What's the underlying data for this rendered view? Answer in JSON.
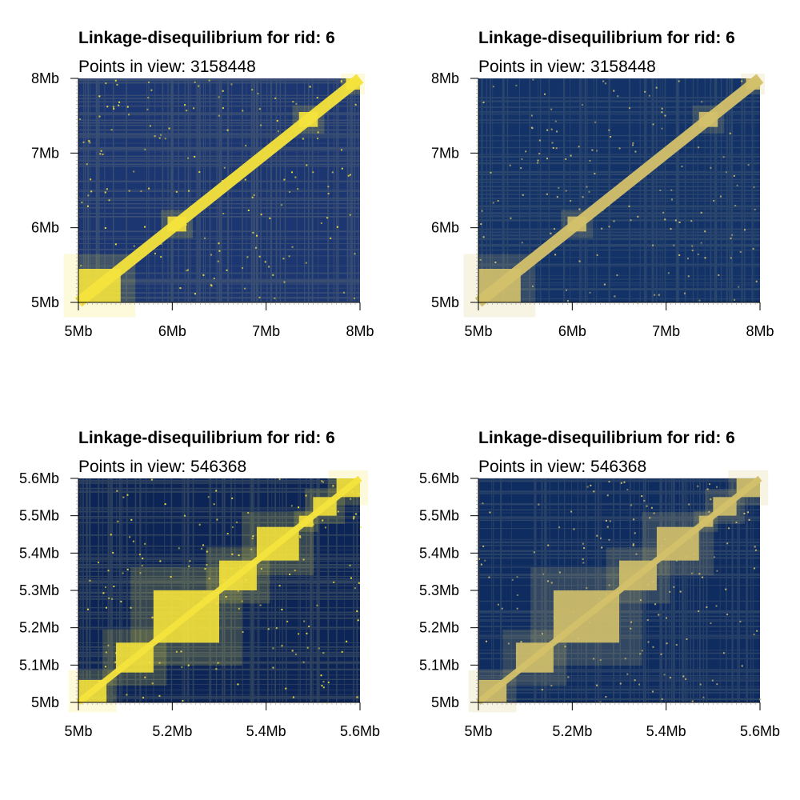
{
  "chart_data": [
    {
      "type": "heatmap",
      "title": "Linkage-disequilibrium for rid: 6",
      "subtitle": "Points in view: 3158448",
      "points_in_view": 3158448,
      "xlim_mb": [
        5,
        8
      ],
      "ylim_mb": [
        5,
        8
      ],
      "x_ticks": [
        5,
        6,
        7,
        8
      ],
      "x_tick_labels": [
        "5Mb",
        "6Mb",
        "7Mb",
        "8Mb"
      ],
      "y_ticks": [
        5,
        6,
        7,
        8
      ],
      "y_tick_labels": [
        "5Mb",
        "6Mb",
        "7Mb",
        "8Mb"
      ],
      "blocks_mb": [
        [
          5.0,
          5.45
        ],
        [
          5.95,
          6.15
        ],
        [
          7.35,
          7.55
        ],
        [
          7.85,
          8.0
        ]
      ],
      "colors": {
        "background": "#1c3672",
        "high": "#f6e33c",
        "mid": "#6f7b72"
      },
      "grid": false,
      "legend": "none"
    },
    {
      "type": "heatmap",
      "title": "Linkage-disequilibrium for rid: 6",
      "subtitle": "Points in view: 3158448",
      "points_in_view": 3158448,
      "xlim_mb": [
        5,
        8
      ],
      "ylim_mb": [
        5,
        8
      ],
      "x_ticks": [
        5,
        6,
        7,
        8
      ],
      "x_tick_labels": [
        "5Mb",
        "6Mb",
        "7Mb",
        "8Mb"
      ],
      "y_ticks": [
        5,
        6,
        7,
        8
      ],
      "y_tick_labels": [
        "5Mb",
        "6Mb",
        "7Mb",
        "8Mb"
      ],
      "blocks_mb": [
        [
          5.0,
          5.45
        ],
        [
          5.95,
          6.15
        ],
        [
          7.35,
          7.55
        ],
        [
          7.85,
          8.0
        ]
      ],
      "colors": {
        "background": "#123268",
        "high": "#d4c16b",
        "mid": "#5b6b78"
      },
      "grid": false,
      "legend": "none"
    },
    {
      "type": "heatmap",
      "title": "Linkage-disequilibrium for rid: 6",
      "subtitle": "Points in view: 546368",
      "points_in_view": 546368,
      "xlim_mb": [
        5,
        5.6
      ],
      "ylim_mb": [
        5,
        5.6
      ],
      "x_ticks": [
        5,
        5.2,
        5.4,
        5.6
      ],
      "x_tick_labels": [
        "5Mb",
        "5.2Mb",
        "5.4Mb",
        "5.6Mb"
      ],
      "y_ticks": [
        5,
        5.1,
        5.2,
        5.3,
        5.4,
        5.5,
        5.6
      ],
      "y_tick_labels": [
        "5Mb",
        "5.1Mb",
        "5.2Mb",
        "5.3Mb",
        "5.4Mb",
        "5.5Mb",
        "5.6Mb"
      ],
      "blocks_mb": [
        [
          5.0,
          5.06
        ],
        [
          5.08,
          5.16
        ],
        [
          5.16,
          5.3
        ],
        [
          5.3,
          5.38
        ],
        [
          5.38,
          5.47
        ],
        [
          5.47,
          5.5
        ],
        [
          5.5,
          5.55
        ],
        [
          5.55,
          5.6
        ]
      ],
      "colors": {
        "background": "#0d2556",
        "high": "#f6e33c",
        "mid": "#6f7b72"
      },
      "grid": false,
      "legend": "none"
    },
    {
      "type": "heatmap",
      "title": "Linkage-disequilibrium for rid: 6",
      "subtitle": "Points in view: 546368",
      "points_in_view": 546368,
      "xlim_mb": [
        5,
        5.6
      ],
      "ylim_mb": [
        5,
        5.6
      ],
      "x_ticks": [
        5,
        5.2,
        5.4,
        5.6
      ],
      "x_tick_labels": [
        "5Mb",
        "5.2Mb",
        "5.4Mb",
        "5.6Mb"
      ],
      "y_ticks": [
        5,
        5.1,
        5.2,
        5.3,
        5.4,
        5.5,
        5.6
      ],
      "y_tick_labels": [
        "5Mb",
        "5.1Mb",
        "5.2Mb",
        "5.3Mb",
        "5.4Mb",
        "5.5Mb",
        "5.6Mb"
      ],
      "blocks_mb": [
        [
          5.0,
          5.06
        ],
        [
          5.08,
          5.16
        ],
        [
          5.16,
          5.3
        ],
        [
          5.3,
          5.38
        ],
        [
          5.38,
          5.47
        ],
        [
          5.47,
          5.5
        ],
        [
          5.5,
          5.55
        ],
        [
          5.55,
          5.6
        ]
      ],
      "colors": {
        "background": "#0f2c60",
        "high": "#d4c16b",
        "mid": "#5b6b78"
      },
      "grid": false,
      "legend": "none"
    }
  ]
}
